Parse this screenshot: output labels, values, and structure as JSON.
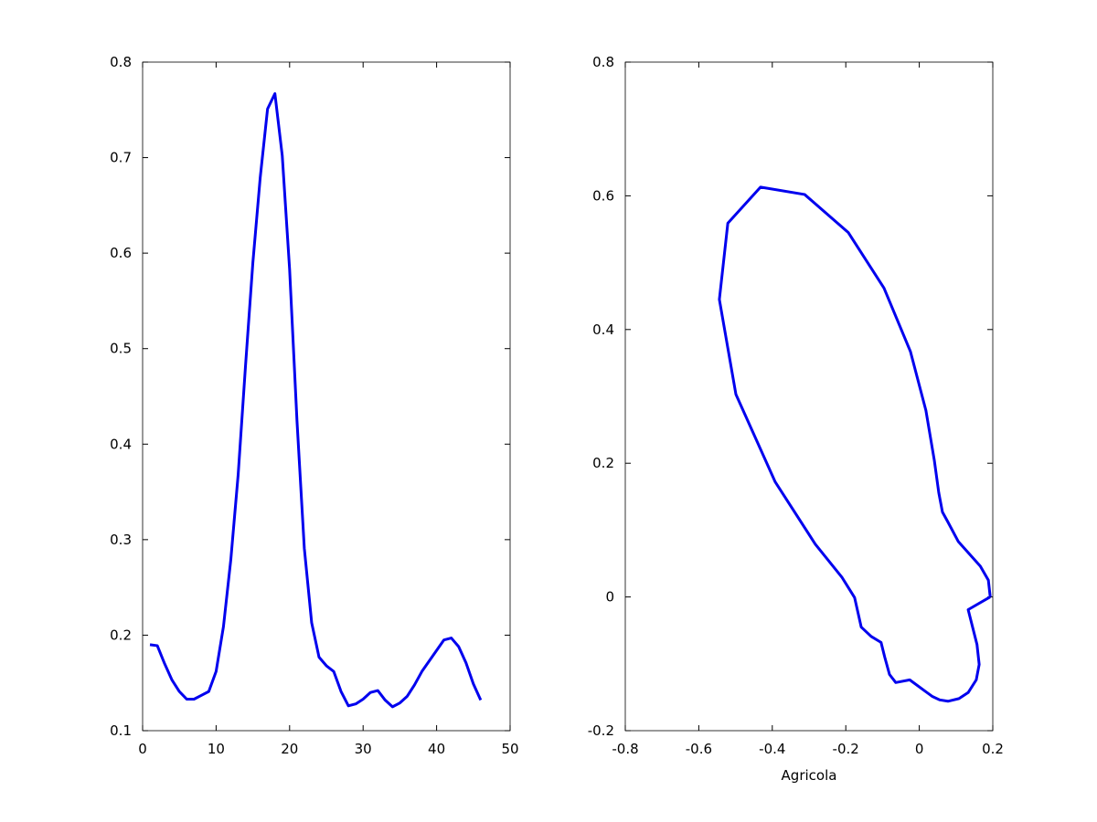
{
  "chart_data": [
    {
      "type": "line",
      "color": "#0000ee",
      "x": [
        1,
        2,
        3,
        4,
        5,
        6,
        7,
        8,
        9,
        10,
        11,
        12,
        13,
        14,
        15,
        16,
        17,
        18,
        19,
        20,
        21,
        22,
        23,
        24,
        25,
        26,
        27,
        28,
        29,
        30,
        31,
        32,
        33,
        34,
        35,
        36,
        37,
        38,
        39,
        40,
        41,
        42,
        43,
        44,
        45,
        46
      ],
      "series": [
        {
          "color": "#0000ee",
          "values": [
            0.19,
            0.189,
            0.17,
            0.153,
            0.141,
            0.133,
            0.133,
            0.137,
            0.141,
            0.162,
            0.209,
            0.279,
            0.368,
            0.482,
            0.59,
            0.679,
            0.751,
            0.767,
            0.702,
            0.583,
            0.425,
            0.291,
            0.213,
            0.177,
            0.168,
            0.162,
            0.141,
            0.126,
            0.128,
            0.133,
            0.14,
            0.142,
            0.132,
            0.125,
            0.129,
            0.136,
            0.148,
            0.162,
            0.173,
            0.184,
            0.195,
            0.197,
            0.188,
            0.171,
            0.149,
            0.132
          ]
        }
      ],
      "xlim": [
        0,
        50
      ],
      "xticks": [
        0,
        10,
        20,
        30,
        40,
        50
      ],
      "ylim": [
        0.1,
        0.8
      ],
      "yticks": [
        0.1,
        0.2,
        0.3,
        0.4,
        0.5,
        0.6,
        0.7,
        0.8
      ]
    },
    {
      "type": "line",
      "x_label": "Agricola",
      "x": [
        0.193,
        0.188,
        0.166,
        0.106,
        0.078,
        0.063,
        0.053,
        0.041,
        0.018,
        -0.024,
        -0.096,
        -0.193,
        -0.312,
        -0.432,
        -0.521,
        -0.544,
        -0.499,
        -0.392,
        -0.283,
        -0.21,
        -0.176,
        -0.158,
        -0.131,
        -0.104,
        -0.094,
        -0.081,
        -0.064,
        -0.026,
        0.016,
        0.036,
        0.056,
        0.078,
        0.108,
        0.133,
        0.155,
        0.163,
        0.157,
        0.133,
        0.193
      ],
      "series": [
        {
          "color": "#0000ee",
          "values": [
            0,
            0.025,
            0.046,
            0.083,
            0.112,
            0.127,
            0.156,
            0.204,
            0.279,
            0.367,
            0.462,
            0.545,
            0.602,
            0.613,
            0.559,
            0.445,
            0.303,
            0.172,
            0.079,
            0.029,
            -0.001,
            -0.045,
            -0.059,
            -0.068,
            -0.09,
            -0.116,
            -0.128,
            -0.124,
            -0.141,
            -0.149,
            -0.154,
            -0.156,
            -0.152,
            -0.143,
            -0.124,
            -0.101,
            -0.071,
            -0.019,
            0
          ]
        }
      ],
      "xlim": [
        -0.8,
        0.2
      ],
      "xticks": [
        -0.8,
        -0.6,
        -0.4,
        -0.2,
        0,
        0.2
      ],
      "ylim": [
        -0.2,
        0.8
      ],
      "yticks": [
        -0.2,
        0,
        0.2,
        0.4,
        0.6,
        0.8
      ]
    }
  ]
}
